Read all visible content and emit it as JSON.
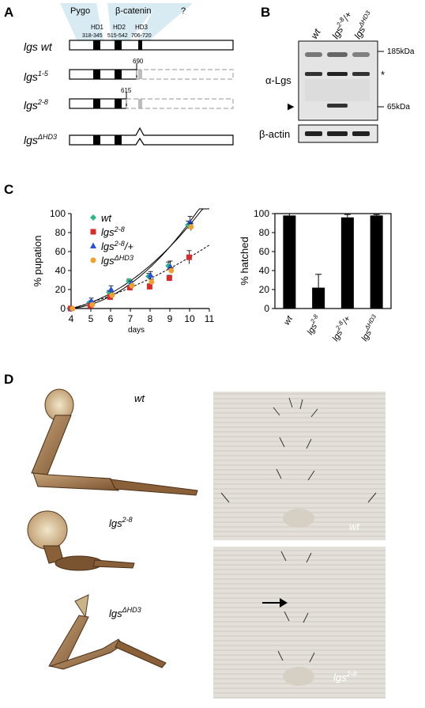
{
  "panelA": {
    "letter": "A",
    "domains": [
      "Pygo",
      "β-catenin",
      "?"
    ],
    "hd_labels": [
      "HD1",
      "HD2",
      "HD3"
    ],
    "hd_ranges": [
      "318-345",
      "515-542",
      "706-720"
    ],
    "constructs": [
      {
        "base": "lgs",
        "sup": "",
        "suffix": " wt"
      },
      {
        "base": "lgs",
        "sup": "1-5",
        "suffix": "",
        "truncation": "690"
      },
      {
        "base": "lgs",
        "sup": "2-8",
        "suffix": "",
        "truncation": "615"
      },
      {
        "base": "lgs",
        "sup": "ΔHD3",
        "suffix": ""
      }
    ]
  },
  "panelB": {
    "letter": "B",
    "lanes": [
      {
        "base": "wt",
        "sup": "",
        "suffix": ""
      },
      {
        "base": "lgs",
        "sup": "2-8",
        "suffix": "/+"
      },
      {
        "base": "lgs",
        "sup": "ΔHD3",
        "suffix": ""
      }
    ],
    "markers": [
      "185kDa",
      "65kDa"
    ],
    "asterisk": "*",
    "arrowhead": "▶",
    "blot_label": "α-Lgs",
    "loading_label": "β-actin"
  },
  "panelC": {
    "letter": "C",
    "chart_data": [
      {
        "type": "scatter",
        "ylabel": "% pupation",
        "xlabel": "days",
        "xlim": [
          4,
          11
        ],
        "ylim": [
          0,
          100
        ],
        "xticks": [
          "4",
          "5",
          "6",
          "7",
          "8",
          "9",
          "10",
          "11"
        ],
        "yticks": [
          "0",
          "20",
          "40",
          "60",
          "80",
          "100"
        ],
        "legend_position": "top-left",
        "series": [
          {
            "name_base": "wt",
            "name_sup": "",
            "name_suffix": "",
            "color": "#2bb58a",
            "marker": "diamond",
            "x": [
              4,
              5,
              6,
              7,
              8,
              9,
              10
            ],
            "y": [
              0,
              6,
              17,
              29,
              34,
              45,
              88
            ],
            "err": [
              0,
              1,
              2,
              2,
              3,
              4,
              4
            ]
          },
          {
            "name_base": "lgs",
            "name_sup": "2-8",
            "name_suffix": "",
            "color": "#d92b2b",
            "marker": "square",
            "x": [
              4,
              5,
              6,
              7,
              8,
              9,
              10
            ],
            "y": [
              0,
              3,
              12,
              22,
              23,
              32,
              54
            ],
            "err": [
              0,
              1,
              2,
              2,
              3,
              3,
              7
            ]
          },
          {
            "name_base": "lgs",
            "name_sup": "2-8",
            "name_suffix": "/+",
            "color": "#2b4fd9",
            "marker": "triangle",
            "x": [
              4,
              5,
              6,
              7,
              8,
              9,
              10
            ],
            "y": [
              0,
              8,
              20,
              26,
              35,
              44,
              91
            ],
            "err": [
              0,
              3,
              4,
              3,
              4,
              6,
              6
            ]
          },
          {
            "name_base": "lgs",
            "name_sup": "ΔHD3",
            "name_suffix": "",
            "color": "#f0a030",
            "marker": "circle",
            "x": [
              4,
              5,
              6,
              7,
              8,
              9,
              10
            ],
            "y": [
              0,
              4,
              14,
              24,
              28,
              40,
              86
            ],
            "err": [
              0,
              1,
              2,
              2,
              3,
              3,
              4
            ]
          }
        ]
      },
      {
        "type": "bar",
        "ylabel": "% hatched",
        "ylim": [
          0,
          100
        ],
        "yticks": [
          "0",
          "20",
          "40",
          "60",
          "80",
          "100"
        ],
        "categories": [
          {
            "base": "wt",
            "sup": "",
            "suffix": ""
          },
          {
            "base": "lgs",
            "sup": "2-8",
            "suffix": ""
          },
          {
            "base": "lgs",
            "sup": "2-8",
            "suffix": "/+"
          },
          {
            "base": "lgs",
            "sup": "ΔHD3",
            "suffix": ""
          }
        ],
        "values": [
          98,
          22,
          96,
          98
        ],
        "err": [
          2,
          14,
          3,
          1
        ]
      }
    ]
  },
  "panelD": {
    "letter": "D",
    "legs": [
      {
        "base": "wt",
        "sup": ""
      },
      {
        "base": "lgs",
        "sup": "2-8"
      },
      {
        "base": "lgs",
        "sup": "ΔHD3"
      }
    ],
    "cuticle": [
      {
        "base": "wt",
        "sup": ""
      },
      {
        "base": "lgs",
        "sup": "2-8"
      }
    ]
  }
}
